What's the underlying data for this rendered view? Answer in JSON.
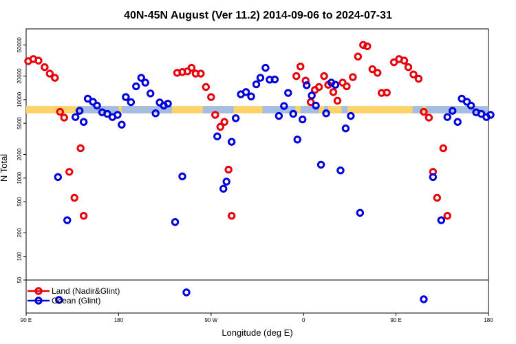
{
  "chart_data": {
    "type": "scatter",
    "title": "40N-45N August (Ver 11.2)   2014-09-06 to 2024-07-31",
    "xlabel": "Longitude (deg E)",
    "ylabel": "N Total",
    "y_scale": "log",
    "ylim": [
      50,
      80000
    ],
    "x_domain_deg_east_continuous": [
      90,
      540
    ],
    "x_ticks": [
      {
        "value": 90,
        "label": "90 E"
      },
      {
        "value": 180,
        "label": "180"
      },
      {
        "value": 270,
        "label": "90 W"
      },
      {
        "value": 360,
        "label": "0"
      },
      {
        "value": 450,
        "label": "90 E"
      },
      {
        "value": 540,
        "label": "180"
      }
    ],
    "y_ticks": [
      {
        "value": 50,
        "label": "50"
      },
      {
        "value": 100,
        "label": "100"
      },
      {
        "value": 200,
        "label": "200"
      },
      {
        "value": 500,
        "label": "500"
      },
      {
        "value": 1000,
        "label": "1000"
      },
      {
        "value": 2000,
        "label": "2000"
      },
      {
        "value": 5000,
        "label": "5000"
      },
      {
        "value": 10000,
        "label": "10000"
      },
      {
        "value": 20000,
        "label": "20000"
      },
      {
        "value": 50000,
        "label": "50000"
      }
    ],
    "band": {
      "x_start": 90,
      "x_end": 540,
      "y_low": 6700,
      "y_high": 8300
    },
    "series": [
      {
        "name": "Land (Nadir&Glint)",
        "color": "#e8000b",
        "points": [
          [
            92,
            31000
          ],
          [
            97,
            33000
          ],
          [
            102,
            31500
          ],
          [
            108,
            26000
          ],
          [
            113,
            21500
          ],
          [
            118,
            19000
          ],
          [
            123,
            7000
          ],
          [
            127,
            5900
          ],
          [
            132,
            1200
          ],
          [
            137,
            560
          ],
          [
            143,
            2400
          ],
          [
            146,
            330
          ],
          [
            237,
            22000
          ],
          [
            242,
            22500
          ],
          [
            247,
            23000
          ],
          [
            251,
            25500
          ],
          [
            255,
            21500
          ],
          [
            260,
            21500
          ],
          [
            265,
            14500
          ],
          [
            270,
            10800
          ],
          [
            274,
            6400
          ],
          [
            279,
            4500
          ],
          [
            283,
            5200
          ],
          [
            287,
            1280
          ],
          [
            290,
            330
          ],
          [
            353,
            20000
          ],
          [
            357,
            26500
          ],
          [
            362,
            17500
          ],
          [
            367,
            9300
          ],
          [
            371,
            13300
          ],
          [
            375,
            14500
          ],
          [
            380,
            20000
          ],
          [
            384,
            15500
          ],
          [
            389,
            12500
          ],
          [
            393,
            9700
          ],
          [
            398,
            16500
          ],
          [
            402,
            14800
          ],
          [
            408,
            19400
          ],
          [
            413,
            35500
          ],
          [
            418,
            50000
          ],
          [
            422,
            48000
          ],
          [
            427,
            24500
          ],
          [
            432,
            22000
          ],
          [
            436,
            12200
          ],
          [
            441,
            12300
          ],
          [
            448,
            30000
          ],
          [
            453,
            33000
          ],
          [
            458,
            31500
          ],
          [
            462,
            26000
          ],
          [
            467,
            21000
          ],
          [
            472,
            18500
          ],
          [
            477,
            7000
          ],
          [
            482,
            5900
          ],
          [
            486,
            1200
          ],
          [
            490,
            560
          ],
          [
            496,
            2400
          ],
          [
            500,
            330
          ]
        ]
      },
      {
        "name": "Ocean (Glint)",
        "color": "#0000dd",
        "points": [
          [
            121,
            1030
          ],
          [
            130,
            290
          ],
          [
            138,
            6000
          ],
          [
            142,
            7200
          ],
          [
            146,
            5200
          ],
          [
            150,
            10300
          ],
          [
            155,
            9400
          ],
          [
            159,
            8400
          ],
          [
            164,
            6900
          ],
          [
            169,
            6600
          ],
          [
            174,
            6000
          ],
          [
            179,
            6400
          ],
          [
            183,
            4800
          ],
          [
            187,
            10800
          ],
          [
            192,
            9300
          ],
          [
            197,
            14800
          ],
          [
            202,
            19000
          ],
          [
            206,
            16500
          ],
          [
            211,
            12000
          ],
          [
            216,
            6700
          ],
          [
            220,
            9200
          ],
          [
            224,
            8400
          ],
          [
            228,
            8900
          ],
          [
            235,
            275
          ],
          [
            242,
            1050
          ],
          [
            276,
            3400
          ],
          [
            282,
            730
          ],
          [
            285,
            900
          ],
          [
            290,
            2900
          ],
          [
            294,
            5800
          ],
          [
            299,
            11700
          ],
          [
            304,
            12500
          ],
          [
            309,
            11000
          ],
          [
            314,
            15700
          ],
          [
            318,
            19000
          ],
          [
            323,
            25500
          ],
          [
            327,
            18000
          ],
          [
            332,
            18100
          ],
          [
            336,
            6200
          ],
          [
            341,
            8300
          ],
          [
            345,
            12200
          ],
          [
            350,
            6600
          ],
          [
            354,
            3100
          ],
          [
            359,
            5600
          ],
          [
            363,
            15300
          ],
          [
            368,
            11300
          ],
          [
            372,
            8400
          ],
          [
            377,
            1480
          ],
          [
            382,
            6700
          ],
          [
            387,
            16500
          ],
          [
            391,
            15500
          ],
          [
            396,
            1250
          ],
          [
            401,
            4300
          ],
          [
            406,
            6200
          ],
          [
            415,
            360
          ],
          [
            486,
            1030
          ],
          [
            494,
            290
          ],
          [
            500,
            6000
          ],
          [
            505,
            7200
          ],
          [
            510,
            5200
          ],
          [
            514,
            10300
          ],
          [
            519,
            9400
          ],
          [
            523,
            8400
          ],
          [
            528,
            6900
          ],
          [
            533,
            6600
          ],
          [
            538,
            6000
          ],
          [
            542,
            6400
          ]
        ],
        "below_range_points": [
          [
            122,
            "<50"
          ],
          [
            246,
            "<50"
          ],
          [
            477,
            "<50"
          ]
        ]
      }
    ],
    "legend": {
      "placement": "bottom-left",
      "entries": [
        "Land (Nadir&Glint)",
        "Ocean (Glint)"
      ]
    }
  }
}
